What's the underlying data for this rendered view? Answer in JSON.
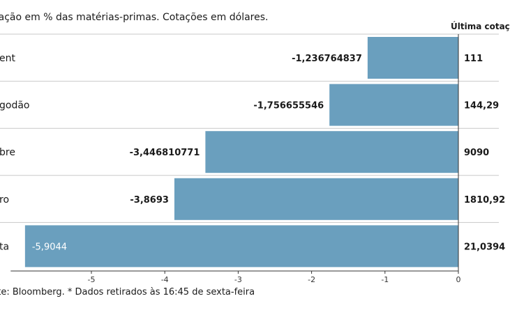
{
  "subtitle": "riação em % das matérias-primas. Cotações em dólares.",
  "price_header": "Última cotaç",
  "source": "nte: Bloomberg.  * Dados retirados às 16:45 de sexta-feira",
  "colors": {
    "bar": "#6a9fbe",
    "separator": "#c8c8c8",
    "axis": "#333333"
  },
  "chart_data": {
    "type": "bar",
    "orientation": "horizontal",
    "categories": [
      "ent",
      "godão",
      "bre",
      "ro",
      "ta"
    ],
    "values": [
      -1.236764837,
      -1.756655546,
      -3.446810771,
      -3.8693,
      -5.9044
    ],
    "value_labels": [
      "-1,236764837",
      "-1,756655546",
      "-3,446810771",
      "-3,8693",
      "-5,9044"
    ],
    "last_prices": [
      "111",
      "144,29",
      "9090",
      "1810,92",
      "21,0394"
    ],
    "xlim": [
      -6.1,
      0
    ],
    "xticks": [
      -5,
      -4,
      -3,
      -2,
      -1,
      0
    ],
    "xtick_labels": [
      "-5",
      "-4",
      "-3",
      "-2",
      "-1",
      "0"
    ],
    "grid": false
  }
}
